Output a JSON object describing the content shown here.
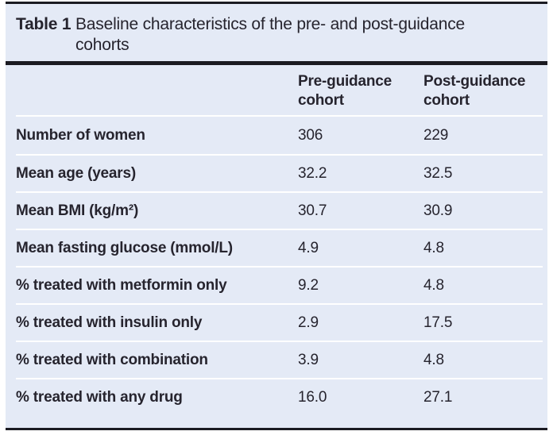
{
  "table": {
    "caption_label": "Table 1",
    "caption_text": "Baseline characteristics of the pre- and post-guidance cohorts",
    "columns": [
      "",
      "Pre-guidance cohort",
      "Post-guidance cohort"
    ],
    "rows": [
      {
        "label": "Number of women",
        "pre": "306",
        "post": "229"
      },
      {
        "label": "Mean age (years)",
        "pre": "32.2",
        "post": "32.5"
      },
      {
        "label": "Mean BMI (kg/m²)",
        "pre": "30.7",
        "post": "30.9"
      },
      {
        "label": "Mean fasting glucose (mmol/L)",
        "pre": "4.9",
        "post": "4.8"
      },
      {
        "label": "% treated with metformin only",
        "pre": "9.2",
        "post": "4.8"
      },
      {
        "label": "% treated with insulin only",
        "pre": "2.9",
        "post": "17.5"
      },
      {
        "label": "% treated with combination",
        "pre": "3.9",
        "post": "4.8"
      },
      {
        "label": "% treated with any drug",
        "pre": "16.0",
        "post": "27.1"
      }
    ]
  },
  "colors": {
    "panel_bg": "#e4eaf6",
    "text": "#26242e",
    "rule": "#1b1b22",
    "row_separator": "#ffffff"
  }
}
